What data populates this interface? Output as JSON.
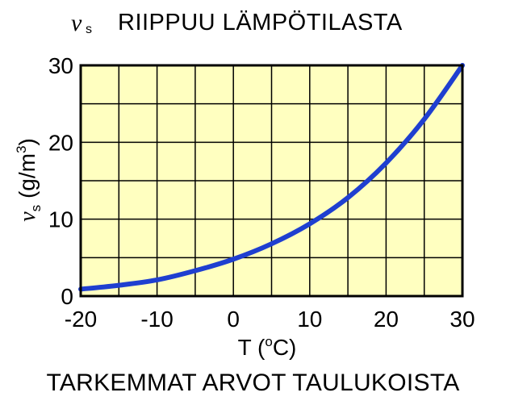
{
  "title": {
    "symbol": "ν",
    "subscript": "s",
    "text": "RIIPPUU LÄMPÖTILASTA"
  },
  "footer": "TARKEMMAT ARVOT TAULUKOISTA",
  "chart_data": {
    "type": "line",
    "xlabel": "T (oC)",
    "ylabel": "νs (g/m3)",
    "xlim": [
      -20,
      30
    ],
    "ylim": [
      0,
      30
    ],
    "xticks": [
      "-20",
      "-10",
      "0",
      "10",
      "20",
      "30"
    ],
    "yticks": [
      "0",
      "10",
      "20",
      "30"
    ],
    "grid": true,
    "colors": {
      "background": "#ffffc0",
      "line": "#1f3fd0",
      "grid": "#000000"
    },
    "series": [
      {
        "x": [
          -20,
          -15,
          -10,
          -5,
          0,
          5,
          10,
          15,
          20,
          25,
          30
        ],
        "values": [
          0.9,
          1.4,
          2.1,
          3.3,
          4.8,
          6.8,
          9.4,
          12.8,
          17.3,
          23.0,
          30.3
        ]
      }
    ]
  }
}
